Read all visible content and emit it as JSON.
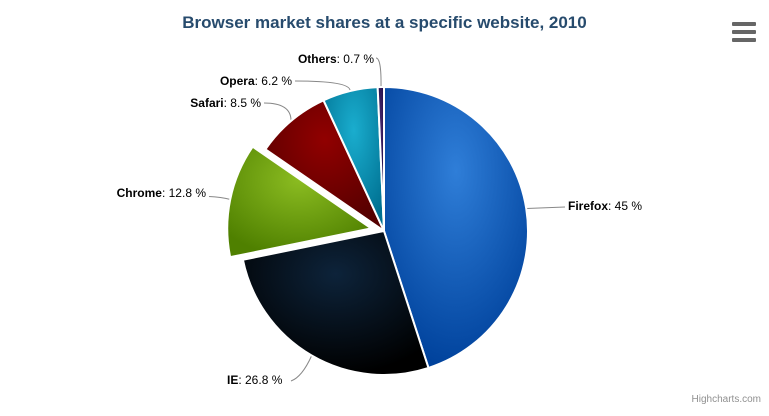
{
  "credits": "Highcharts.com",
  "export_menu": {
    "icon": "hamburger-icon"
  },
  "styles": {
    "title_color": "#274b6d",
    "label_color": "#000000",
    "connector_color": "#888888",
    "border_color": "#ffffff",
    "credits_color": "#909090",
    "menu_icon_color": "#666666",
    "background": "#ffffff"
  },
  "chart_data": {
    "type": "pie",
    "title": "Browser market shares at a specific website, 2010",
    "legend": "none",
    "start_angle_deg": 0,
    "direction": "clockwise",
    "label_format": "{name}: {value} %",
    "slices": [
      {
        "name": "Firefox",
        "value": 45,
        "color": "#2f7ed8",
        "sliced": false
      },
      {
        "name": "IE",
        "value": 26.8,
        "color": "#0d233a",
        "sliced": false
      },
      {
        "name": "Chrome",
        "value": 12.8,
        "color": "#8bbc21",
        "sliced": true
      },
      {
        "name": "Safari",
        "value": 8.5,
        "color": "#910000",
        "sliced": false
      },
      {
        "name": "Opera",
        "value": 6.2,
        "color": "#1aadce",
        "sliced": false
      },
      {
        "name": "Others",
        "value": 0.7,
        "color": "#492970",
        "sliced": false
      }
    ]
  }
}
